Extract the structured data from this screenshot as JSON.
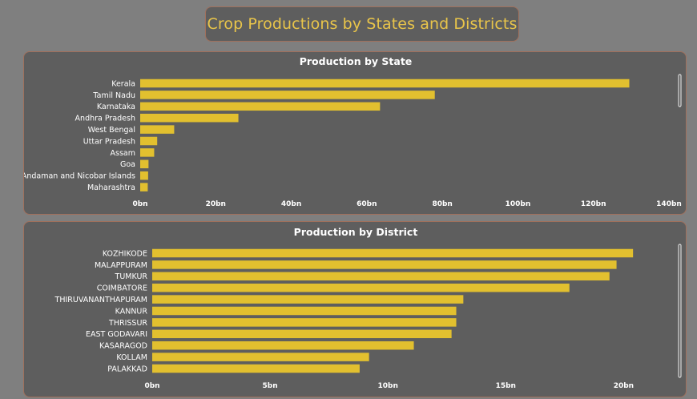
{
  "header": {
    "title": "Crop Productions by States and Districts"
  },
  "chart_data": [
    {
      "type": "bar",
      "orientation": "horizontal",
      "title": "Production by State",
      "categories": [
        "Kerala",
        "Tamil Nadu",
        "Karnataka",
        "Andhra Pradesh",
        "West Bengal",
        "Uttar Pradesh",
        "Assam",
        "Goa",
        "Andaman and Nicobar Islands",
        "Maharashtra"
      ],
      "values": [
        129.5,
        78,
        63.5,
        26,
        9,
        4.5,
        3.7,
        2.2,
        2.1,
        2
      ],
      "xlim": [
        0,
        140
      ],
      "xticks": [
        0,
        20,
        40,
        60,
        80,
        100,
        120,
        140
      ],
      "tick_labels": [
        "0bn",
        "20bn",
        "40bn",
        "60bn",
        "80bn",
        "100bn",
        "120bn",
        "140bn"
      ],
      "bar_color": "#e2c02f"
    },
    {
      "type": "bar",
      "orientation": "horizontal",
      "title": "Production by District",
      "categories": [
        "KOZHIKODE",
        "MALAPPURAM",
        "TUMKUR",
        "COIMBATORE",
        "THIRUVANANTHAPURAM",
        "KANNUR",
        "THRISSUR",
        "EAST GODAVARI",
        "KASARAGOD",
        "KOLLAM",
        "PALAKKAD"
      ],
      "values": [
        20.4,
        19.7,
        19.4,
        17.7,
        13.2,
        12.9,
        12.9,
        12.7,
        11.1,
        9.2,
        8.8
      ],
      "xlim": [
        0,
        22.4
      ],
      "xticks": [
        0,
        5,
        10,
        15,
        20
      ],
      "tick_labels": [
        "0bn",
        "5bn",
        "10bn",
        "15bn",
        "20bn"
      ],
      "bar_color": "#e2c02f"
    }
  ]
}
